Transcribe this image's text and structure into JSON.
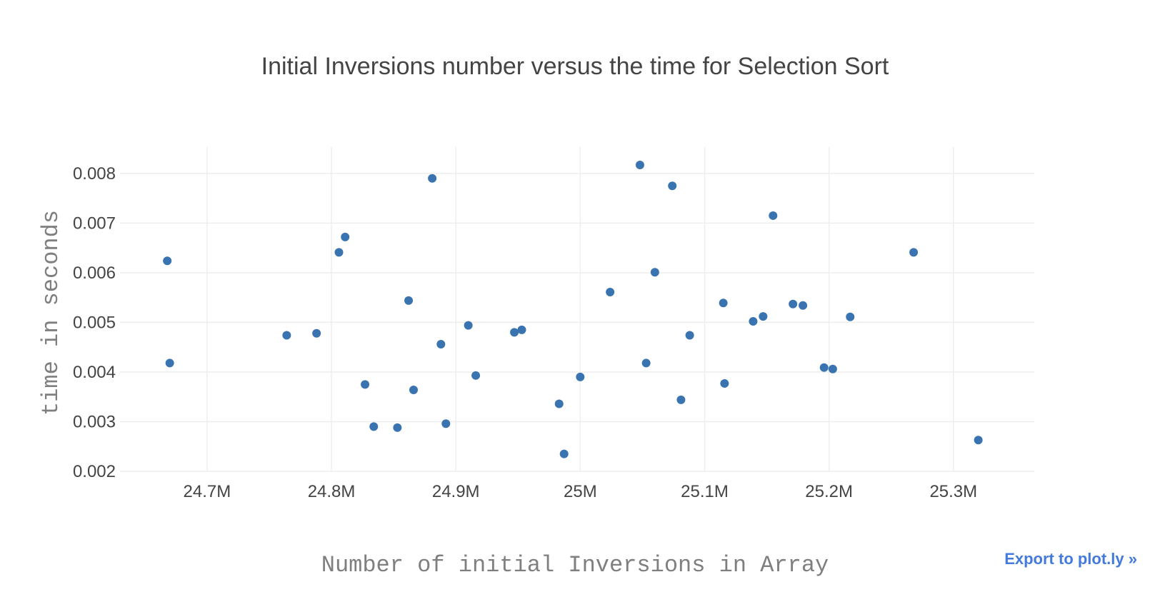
{
  "chart_data": {
    "type": "scatter",
    "title": "Initial Inversions number versus the time for Selection Sort",
    "xlabel": "Number of initial Inversions in Array",
    "ylabel": "time in seconds",
    "xlim": [
      24630000,
      25365000
    ],
    "ylim": [
      0.002,
      0.00853
    ],
    "x_ticks": [
      24700000,
      24800000,
      24900000,
      25000000,
      25100000,
      25200000,
      25300000
    ],
    "x_tick_labels": [
      "24.7M",
      "24.8M",
      "24.9M",
      "25M",
      "25.1M",
      "25.2M",
      "25.3M"
    ],
    "y_ticks": [
      0.002,
      0.003,
      0.004,
      0.005,
      0.006,
      0.007,
      0.008
    ],
    "y_tick_labels": [
      "0.002",
      "0.003",
      "0.004",
      "0.005",
      "0.006",
      "0.007",
      "0.008"
    ],
    "grid": true,
    "legend": "none",
    "marker_color": "#3a74b0",
    "x": [
      24668000,
      24670000,
      24764000,
      24788000,
      24806000,
      24811000,
      24827000,
      24834000,
      24853000,
      24862000,
      24866000,
      24881000,
      24888000,
      24892000,
      24910000,
      24916000,
      24947000,
      24953000,
      24983000,
      24987000,
      25000000,
      25024000,
      25048000,
      25053000,
      25060000,
      25074000,
      25081000,
      25088000,
      25115000,
      25116000,
      25139000,
      25147000,
      25155000,
      25171000,
      25179000,
      25196000,
      25203000,
      25217000,
      25268000,
      25320000
    ],
    "y": [
      0.00624,
      0.00418,
      0.00474,
      0.00478,
      0.00641,
      0.00672,
      0.00375,
      0.0029,
      0.00288,
      0.00544,
      0.00364,
      0.0079,
      0.00456,
      0.00296,
      0.00494,
      0.00393,
      0.0048,
      0.00485,
      0.00336,
      0.00235,
      0.0039,
      0.00561,
      0.00817,
      0.00418,
      0.00601,
      0.00775,
      0.00344,
      0.00474,
      0.00539,
      0.00377,
      0.00502,
      0.00512,
      0.00715,
      0.00537,
      0.00534,
      0.00409,
      0.00406,
      0.00511,
      0.00641,
      0.00263
    ]
  },
  "export_link": {
    "label": "Export to plot.ly »"
  }
}
